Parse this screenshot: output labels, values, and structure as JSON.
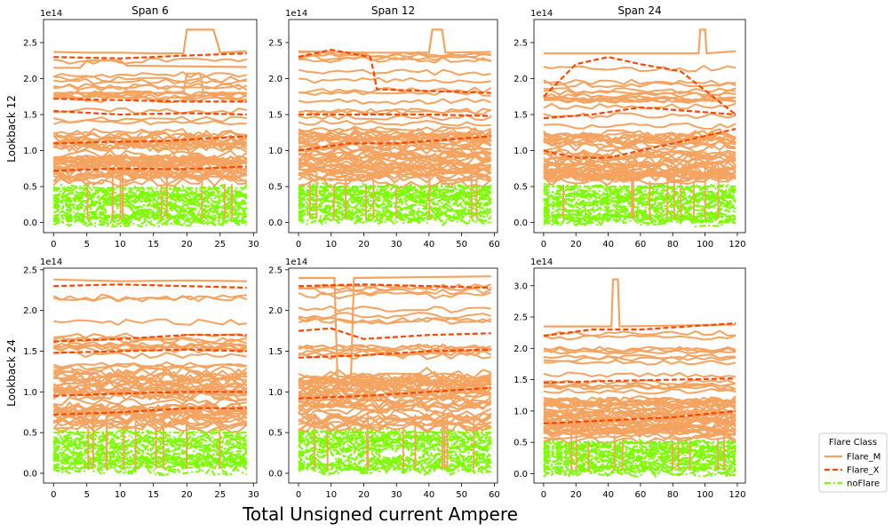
{
  "figure": {
    "xlabel": "Total Unsigned current Ampere",
    "row_labels": [
      "Lookback 12",
      "Lookback 24"
    ],
    "legend": {
      "title": "Flare Class",
      "placement": "lower-right outside",
      "entries": [
        {
          "name": "Flare_M",
          "color": "#f4a460",
          "style": "solid"
        },
        {
          "name": "Flare_X",
          "color": "#ff4500",
          "style": "dashed"
        },
        {
          "name": "noFlare",
          "color": "#7cfc00",
          "style": "dashdot"
        }
      ]
    }
  },
  "chart_data": [
    {
      "type": "line",
      "title": "Span 6",
      "ylabel": "Lookback 12",
      "offset_text": "1e14",
      "xticks": [
        "0",
        "5",
        "10",
        "15",
        "20",
        "25",
        "30"
      ],
      "yticks": [
        "0.0",
        "0.5",
        "1.0",
        "1.5",
        "2.0",
        "2.5"
      ],
      "xlim": [
        -1.5,
        30.5
      ],
      "ylim": [
        -0.14,
        2.82
      ],
      "series": [
        {
          "name": "Flare_M",
          "x": [
            0,
            5,
            10,
            15,
            19.5,
            20,
            24,
            25,
            29
          ],
          "y": [
            2.37,
            2.36,
            2.36,
            2.35,
            2.35,
            2.68,
            2.68,
            2.36,
            2.38
          ]
        },
        {
          "name": "Flare_M",
          "x": [
            0,
            4,
            5,
            10,
            11,
            29
          ],
          "y": [
            2.15,
            2.15,
            2.25,
            2.25,
            2.18,
            2.16
          ]
        },
        {
          "name": "Flare_X",
          "x": [
            0,
            10,
            20,
            29
          ],
          "y": [
            2.3,
            2.28,
            2.32,
            2.35
          ]
        },
        {
          "name": "Flare_M",
          "x": [
            0,
            10,
            19.5,
            20,
            22,
            22.5,
            29
          ],
          "y": [
            1.8,
            1.8,
            1.8,
            2.07,
            2.07,
            1.8,
            1.8
          ]
        },
        {
          "name": "Flare_X",
          "x": [
            0,
            10,
            20,
            29
          ],
          "y": [
            1.55,
            1.5,
            1.52,
            1.5
          ]
        },
        {
          "name": "Flare_X",
          "x": [
            0,
            10,
            20,
            29
          ],
          "y": [
            1.72,
            1.7,
            1.68,
            1.68
          ]
        },
        {
          "name": "Flare_X",
          "x": [
            0,
            8,
            16,
            29
          ],
          "y": [
            1.1,
            1.12,
            1.13,
            1.2
          ]
        },
        {
          "name": "Flare_X",
          "x": [
            0,
            10,
            20,
            29
          ],
          "y": [
            0.72,
            0.75,
            0.74,
            0.78
          ]
        },
        {
          "name": "noFlare",
          "x": [
            0,
            29
          ],
          "y": [
            0.48,
            0.48
          ]
        }
      ]
    },
    {
      "type": "line",
      "title": "Span 12",
      "offset_text": "1e14",
      "xticks": [
        "0",
        "10",
        "20",
        "30",
        "40",
        "50",
        "60"
      ],
      "yticks": [
        "0.0",
        "0.5",
        "1.0",
        "1.5",
        "2.0",
        "2.5"
      ],
      "xlim": [
        -3,
        61
      ],
      "ylim": [
        -0.14,
        2.82
      ],
      "series": [
        {
          "name": "Flare_M",
          "x": [
            0,
            20,
            40,
            41,
            44,
            45,
            59
          ],
          "y": [
            2.38,
            2.36,
            2.36,
            2.68,
            2.68,
            2.36,
            2.37
          ]
        },
        {
          "name": "Flare_X",
          "x": [
            0,
            10,
            22,
            23,
            24,
            59
          ],
          "y": [
            2.3,
            2.4,
            2.3,
            2.1,
            1.85,
            1.8
          ]
        },
        {
          "name": "Flare_X",
          "x": [
            0,
            20,
            40,
            59
          ],
          "y": [
            1.5,
            1.5,
            1.5,
            1.48
          ]
        },
        {
          "name": "Flare_X",
          "x": [
            0,
            15,
            30,
            45,
            59
          ],
          "y": [
            1.0,
            1.1,
            1.1,
            1.15,
            1.2
          ]
        },
        {
          "name": "noFlare",
          "x": [
            0,
            59
          ],
          "y": [
            0.5,
            0.5
          ]
        }
      ]
    },
    {
      "type": "line",
      "title": "Span 24",
      "offset_text": "1e14",
      "xticks": [
        "0",
        "20",
        "40",
        "60",
        "80",
        "100",
        "120"
      ],
      "yticks": [
        "0.0",
        "0.5",
        "1.0",
        "1.5",
        "2.0",
        "2.5"
      ],
      "xlim": [
        -6,
        125
      ],
      "ylim": [
        -0.14,
        2.82
      ],
      "series": [
        {
          "name": "Flare_M",
          "x": [
            0,
            40,
            96,
            97,
            100,
            101,
            119
          ],
          "y": [
            2.35,
            2.35,
            2.35,
            2.68,
            2.68,
            2.35,
            2.38
          ]
        },
        {
          "name": "Flare_X",
          "x": [
            0,
            20,
            40,
            60,
            85,
            119
          ],
          "y": [
            1.75,
            2.2,
            2.3,
            2.2,
            2.1,
            1.5
          ]
        },
        {
          "name": "Flare_X",
          "x": [
            0,
            30,
            60,
            90,
            119
          ],
          "y": [
            1.45,
            1.5,
            1.6,
            1.55,
            1.5
          ]
        },
        {
          "name": "Flare_X",
          "x": [
            0,
            20,
            40,
            60,
            80,
            119
          ],
          "y": [
            1.0,
            0.9,
            0.9,
            1.0,
            1.1,
            1.3
          ]
        },
        {
          "name": "noFlare",
          "x": [
            0,
            119
          ],
          "y": [
            0.5,
            0.5
          ]
        }
      ]
    },
    {
      "type": "line",
      "ylabel": "Lookback 24",
      "offset_text": "1e14",
      "xticks": [
        "0",
        "5",
        "10",
        "15",
        "20",
        "25",
        "30"
      ],
      "yticks": [
        "0.0",
        "0.5",
        "1.0",
        "1.5",
        "2.0",
        "2.5"
      ],
      "xlim": [
        -1.5,
        30.5
      ],
      "ylim": [
        -0.12,
        2.52
      ],
      "series": [
        {
          "name": "Flare_M",
          "x": [
            0,
            10,
            20,
            29
          ],
          "y": [
            2.38,
            2.36,
            2.37,
            2.36
          ]
        },
        {
          "name": "Flare_X",
          "x": [
            0,
            10,
            20,
            29
          ],
          "y": [
            2.3,
            2.32,
            2.3,
            2.28
          ]
        },
        {
          "name": "Flare_X",
          "x": [
            0,
            10,
            20,
            29
          ],
          "y": [
            1.62,
            1.65,
            1.7,
            1.7
          ]
        },
        {
          "name": "Flare_X",
          "x": [
            0,
            10,
            20,
            29
          ],
          "y": [
            1.48,
            1.5,
            1.52,
            1.5
          ]
        },
        {
          "name": "Flare_X",
          "x": [
            0,
            10,
            20,
            29
          ],
          "y": [
            0.95,
            0.98,
            1.0,
            1.0
          ]
        },
        {
          "name": "Flare_X",
          "x": [
            0,
            10,
            20,
            29
          ],
          "y": [
            0.72,
            0.75,
            0.8,
            0.8
          ]
        },
        {
          "name": "noFlare",
          "x": [
            0,
            29
          ],
          "y": [
            0.5,
            0.5
          ]
        }
      ]
    },
    {
      "type": "line",
      "offset_text": "1e14",
      "xticks": [
        "0",
        "10",
        "20",
        "30",
        "40",
        "50",
        "60"
      ],
      "yticks": [
        "0.0",
        "0.5",
        "1.0",
        "1.5",
        "2.0",
        "2.5"
      ],
      "xlim": [
        -3,
        61
      ],
      "ylim": [
        -0.12,
        2.52
      ],
      "series": [
        {
          "name": "Flare_M",
          "x": [
            0,
            11,
            12,
            16,
            17,
            59
          ],
          "y": [
            2.4,
            2.4,
            1.1,
            1.1,
            2.4,
            2.42
          ]
        },
        {
          "name": "Flare_X",
          "x": [
            0,
            20,
            40,
            59
          ],
          "y": [
            2.3,
            2.32,
            2.3,
            2.28
          ]
        },
        {
          "name": "Flare_X",
          "x": [
            0,
            10,
            20,
            40,
            59
          ],
          "y": [
            1.75,
            1.78,
            1.65,
            1.7,
            1.72
          ]
        },
        {
          "name": "Flare_X",
          "x": [
            0,
            20,
            40,
            59
          ],
          "y": [
            1.42,
            1.45,
            1.5,
            1.52
          ]
        },
        {
          "name": "Flare_X",
          "x": [
            0,
            20,
            40,
            59
          ],
          "y": [
            0.92,
            0.95,
            1.0,
            1.05
          ]
        },
        {
          "name": "noFlare",
          "x": [
            0,
            59
          ],
          "y": [
            0.5,
            0.5
          ]
        }
      ]
    },
    {
      "type": "line",
      "offset_text": "1e14",
      "xticks": [
        "0",
        "20",
        "40",
        "60",
        "80",
        "100",
        "120"
      ],
      "yticks": [
        "0.0",
        "0.5",
        "1.0",
        "1.5",
        "2.0",
        "2.5",
        "3.0"
      ],
      "xlim": [
        -6,
        125
      ],
      "ylim": [
        -0.15,
        3.28
      ],
      "series": [
        {
          "name": "Flare_M",
          "x": [
            0,
            40,
            42,
            43,
            46,
            47,
            119
          ],
          "y": [
            2.35,
            2.35,
            2.35,
            3.1,
            3.1,
            2.35,
            2.38
          ]
        },
        {
          "name": "Flare_X",
          "x": [
            0,
            30,
            60,
            119
          ],
          "y": [
            2.2,
            2.3,
            2.3,
            2.4
          ]
        },
        {
          "name": "Flare_X",
          "x": [
            0,
            40,
            80,
            119
          ],
          "y": [
            1.45,
            1.48,
            1.5,
            1.52
          ]
        },
        {
          "name": "Flare_X",
          "x": [
            0,
            40,
            80,
            119
          ],
          "y": [
            0.8,
            0.85,
            0.9,
            1.0
          ]
        },
        {
          "name": "noFlare",
          "x": [
            0,
            119
          ],
          "y": [
            0.5,
            0.5
          ]
        }
      ]
    }
  ]
}
